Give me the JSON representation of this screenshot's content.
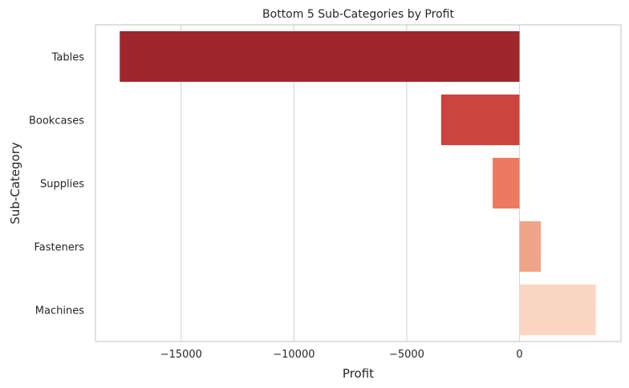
{
  "chart_data": {
    "type": "bar",
    "orientation": "horizontal",
    "title": "Bottom 5 Sub-Categories by Profit",
    "xlabel": "Profit",
    "ylabel": "Sub-Category",
    "categories": [
      "Tables",
      "Bookcases",
      "Supplies",
      "Fasteners",
      "Machines"
    ],
    "values": [
      -17725,
      -3473,
      -1189,
      950,
      3385
    ],
    "colors": [
      "#9f262b",
      "#cd433d",
      "#ec7a61",
      "#f0a48a",
      "#fbd6c3"
    ],
    "xlim": [
      -18800,
      4500
    ],
    "xticks": [
      -15000,
      -10000,
      -5000,
      0
    ],
    "xtick_labels": [
      "−15000",
      "−10000",
      "−5000",
      "0"
    ],
    "grid": "vertical",
    "legend": "none"
  }
}
